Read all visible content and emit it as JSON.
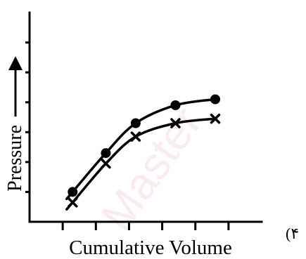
{
  "chart_data": {
    "type": "line",
    "option_label": "(۴",
    "xlabel": "Cumulative Volume",
    "ylabel": "Pressure",
    "xlim": [
      0,
      7
    ],
    "ylim": [
      0,
      7
    ],
    "x_ticks": [
      1,
      2,
      3,
      4,
      5,
      6
    ],
    "y_ticks": [
      1,
      2,
      3,
      4,
      5,
      6
    ],
    "grid": false,
    "legend": "none",
    "watermark": "Master",
    "series": [
      {
        "marker": "circle",
        "points": [
          [
            1.3,
            1.0
          ],
          [
            2.3,
            2.3
          ],
          [
            3.2,
            3.3
          ],
          [
            4.4,
            3.9
          ],
          [
            5.6,
            4.1
          ]
        ]
      },
      {
        "marker": "cross",
        "points": [
          [
            1.3,
            0.65
          ],
          [
            2.3,
            1.95
          ],
          [
            3.2,
            2.85
          ],
          [
            4.4,
            3.3
          ],
          [
            5.6,
            3.45
          ]
        ]
      }
    ]
  }
}
